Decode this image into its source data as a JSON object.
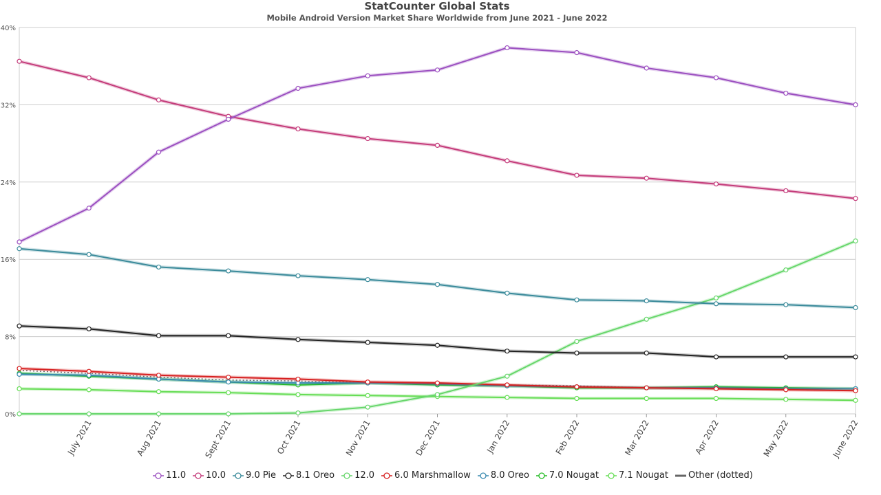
{
  "chart_data": {
    "type": "line",
    "title": "StatCounter Global Stats",
    "subtitle": "Mobile Android Version Market Share Worldwide from June 2021 - June 2022",
    "x_categories": [
      "June 2021",
      "July 2021",
      "Aug 2021",
      "Sept 2021",
      "Oct 2021",
      "Nov 2021",
      "Dec 2021",
      "Jan 2022",
      "Feb 2022",
      "Mar 2022",
      "Apr 2022",
      "May 2022",
      "June 2022"
    ],
    "x_tick_labels": [
      "July 2021",
      "Aug 2021",
      "Sept 2021",
      "Oct 2021",
      "Nov 2021",
      "Dec 2021",
      "Jan 2022",
      "Feb 2022",
      "Mar 2022",
      "Apr 2022",
      "May 2022",
      "June 2022"
    ],
    "y_ticks": [
      "0%",
      "8%",
      "16%",
      "24%",
      "32%",
      "40%"
    ],
    "ylim": [
      0,
      40
    ],
    "grid": true,
    "legend_position": "bottom",
    "series": [
      {
        "name": "11.0",
        "color": "#9b4fc0",
        "dashed": false,
        "values": [
          17.8,
          21.3,
          27.1,
          30.5,
          33.7,
          35.0,
          35.6,
          37.9,
          37.4,
          35.8,
          34.8,
          33.2,
          32.0
        ]
      },
      {
        "name": "10.0",
        "color": "#c43b7a",
        "dashed": false,
        "values": [
          36.5,
          34.8,
          32.5,
          30.8,
          29.5,
          28.5,
          27.8,
          26.2,
          24.7,
          24.4,
          23.8,
          23.1,
          22.3
        ]
      },
      {
        "name": "9.0 Pie",
        "color": "#3a8a9a",
        "dashed": false,
        "values": [
          17.1,
          16.5,
          15.2,
          14.8,
          14.3,
          13.9,
          13.4,
          12.5,
          11.8,
          11.7,
          11.4,
          11.3,
          11.0
        ]
      },
      {
        "name": "8.1 Oreo",
        "color": "#222222",
        "dashed": false,
        "values": [
          9.1,
          8.8,
          8.1,
          8.1,
          7.7,
          7.4,
          7.1,
          6.5,
          6.3,
          6.3,
          5.9,
          5.9,
          5.9
        ]
      },
      {
        "name": "12.0",
        "color": "#66d66a",
        "dashed": false,
        "values": [
          0.0,
          0.0,
          0.0,
          0.0,
          0.1,
          0.7,
          2.0,
          3.9,
          7.5,
          9.8,
          12.0,
          14.9,
          17.9
        ]
      },
      {
        "name": "6.0 Marshmallow",
        "color": "#d62020",
        "dashed": false,
        "values": [
          4.7,
          4.4,
          4.0,
          3.8,
          3.6,
          3.3,
          3.2,
          3.0,
          2.8,
          2.7,
          2.6,
          2.5,
          2.4
        ]
      },
      {
        "name": "8.0 Oreo",
        "color": "#3a8ab0",
        "dashed": false,
        "values": [
          4.1,
          4.0,
          3.6,
          3.3,
          3.2,
          3.2,
          3.1,
          2.9,
          2.8,
          2.7,
          2.7,
          2.6,
          2.6
        ]
      },
      {
        "name": "7.0 Nougat",
        "color": "#22bb22",
        "dashed": false,
        "values": [
          4.2,
          3.9,
          3.6,
          3.3,
          3.0,
          3.2,
          3.0,
          2.9,
          2.7,
          2.7,
          2.8,
          2.7,
          2.6
        ]
      },
      {
        "name": "7.1 Nougat",
        "color": "#66dd55",
        "dashed": false,
        "values": [
          2.6,
          2.5,
          2.3,
          2.2,
          2.0,
          1.9,
          1.8,
          1.7,
          1.6,
          1.6,
          1.6,
          1.5,
          1.4
        ]
      },
      {
        "name": "Other (dotted)",
        "color": "#666666",
        "dashed": true,
        "values": [
          4.5,
          4.2,
          3.8,
          3.5,
          3.4,
          3.2,
          3.1,
          3.0,
          2.9,
          2.7,
          2.6,
          2.5,
          2.4
        ]
      }
    ]
  }
}
